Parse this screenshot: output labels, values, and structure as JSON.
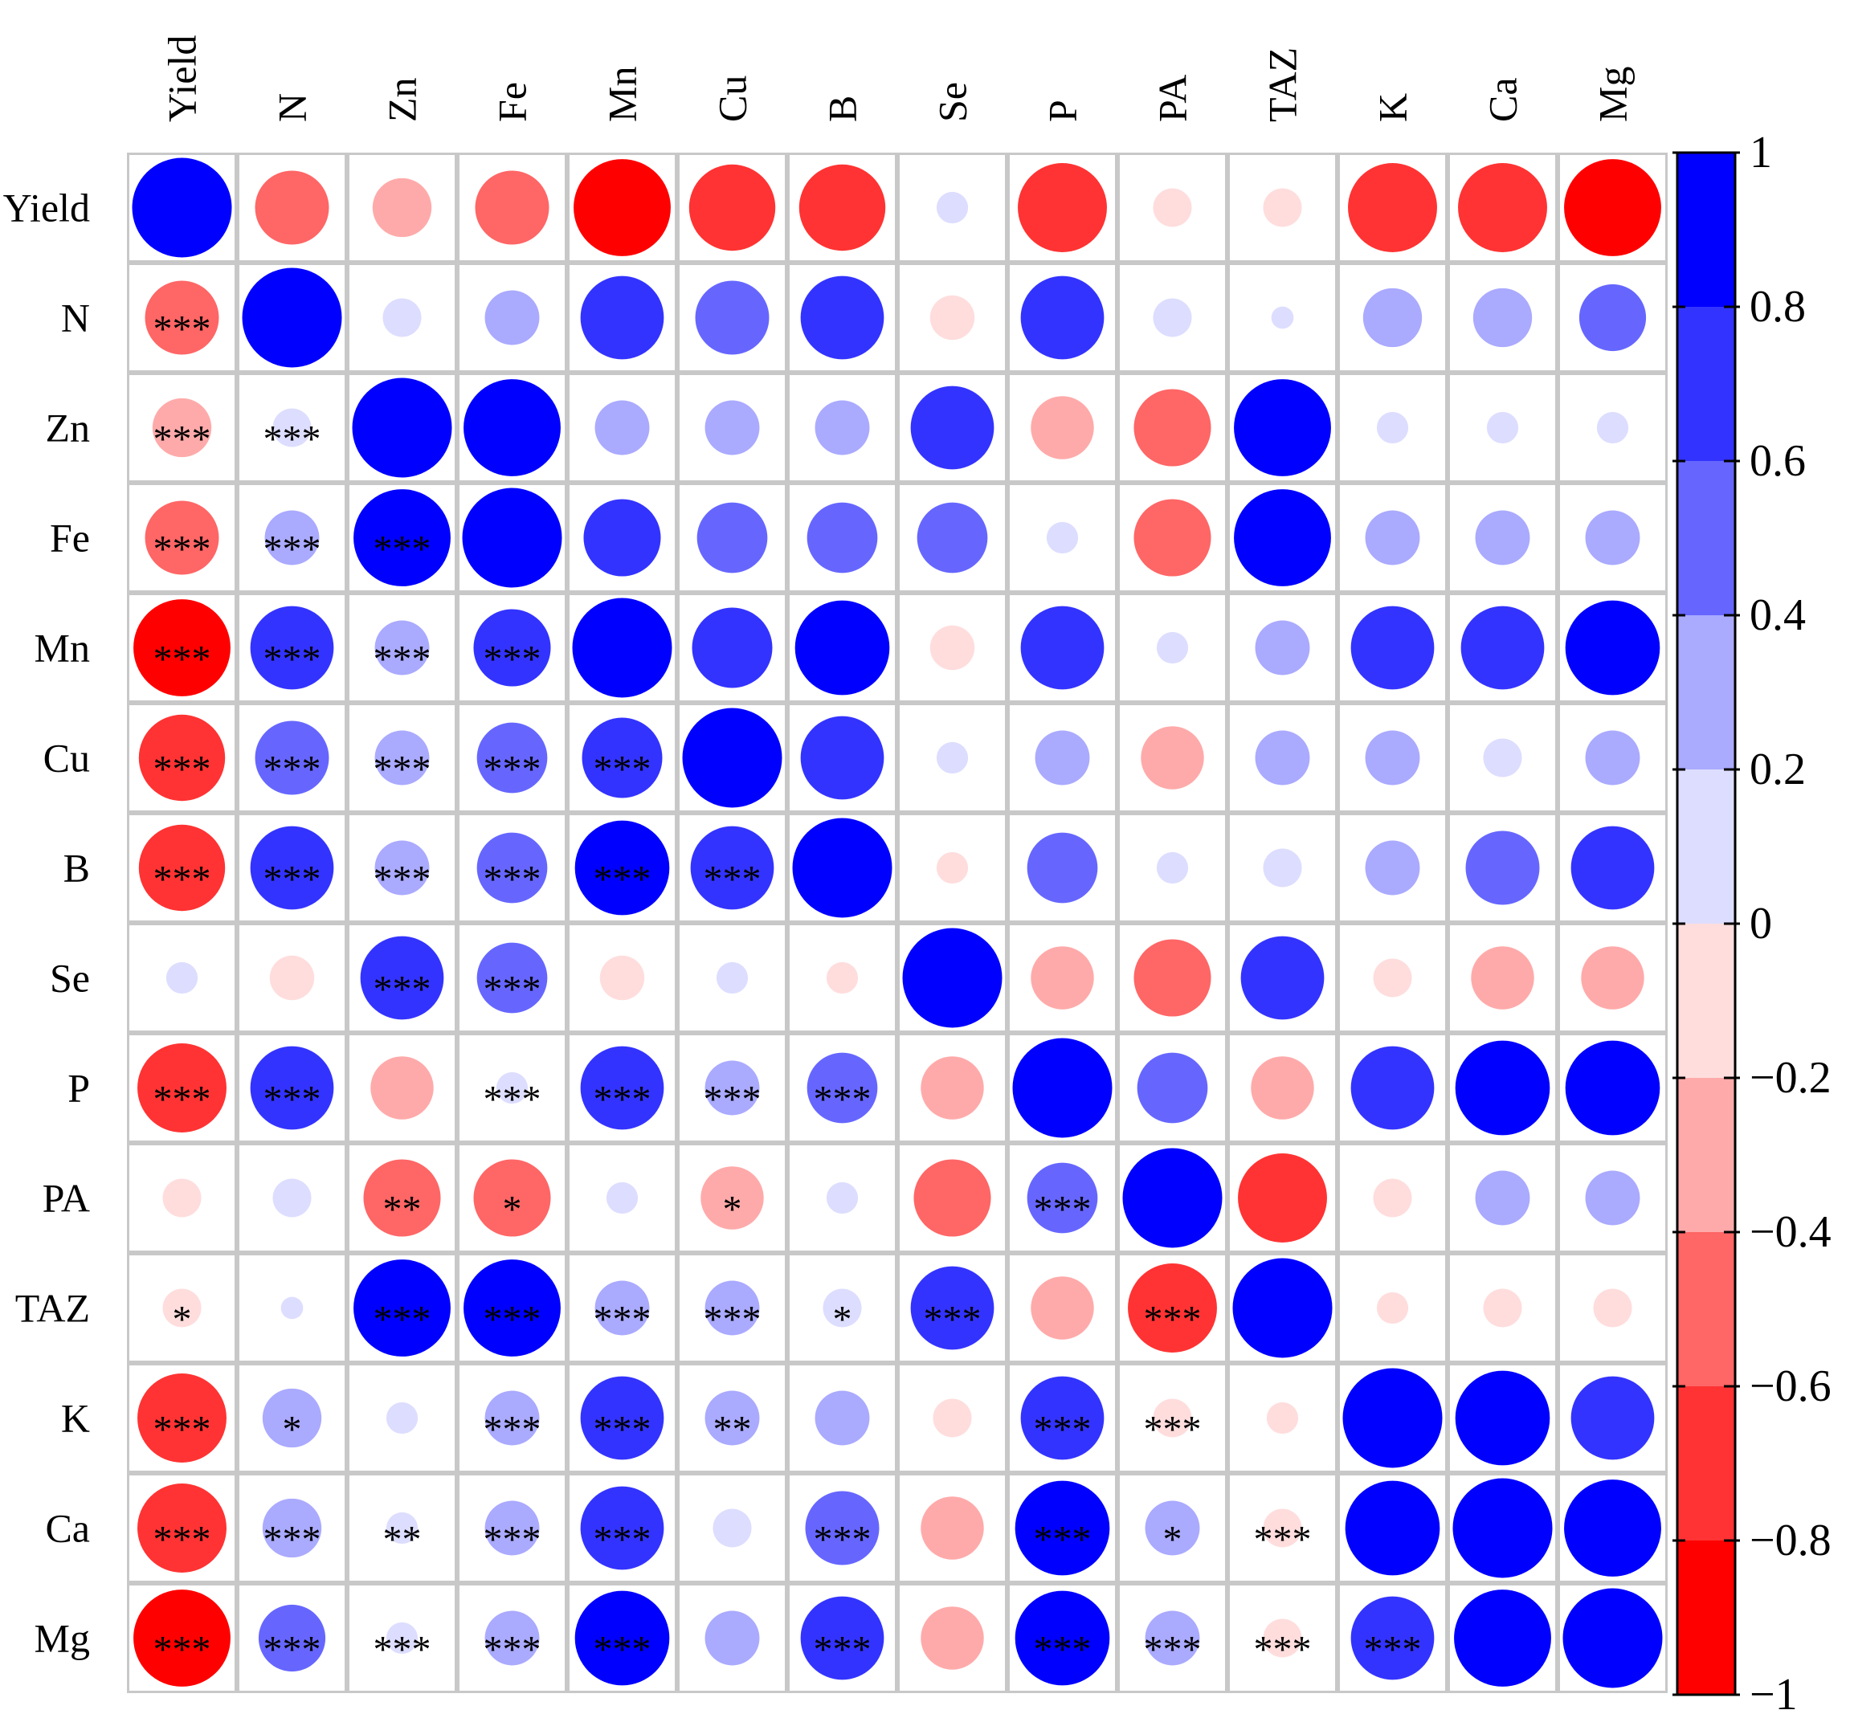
{
  "chart_data": {
    "type": "heatmap",
    "subtype": "correlation-circle-matrix",
    "variables": [
      "Yield",
      "N",
      "Zn",
      "Fe",
      "Mn",
      "Cu",
      "B",
      "Se",
      "P",
      "PA",
      "TAZ",
      "K",
      "Ca",
      "Mg"
    ],
    "upper_triangle": "circles sized and colored by correlation",
    "lower_triangle": "circles with significance stars",
    "correlation": [
      [
        1.0,
        -0.55,
        -0.35,
        -0.55,
        -0.95,
        -0.75,
        -0.75,
        0.1,
        -0.8,
        -0.15,
        -0.15,
        -0.8,
        -0.8,
        -0.95
      ],
      [
        -0.55,
        1.0,
        0.15,
        0.3,
        0.7,
        0.55,
        0.7,
        -0.2,
        0.7,
        0.15,
        0.05,
        0.35,
        0.35,
        0.45
      ],
      [
        -0.35,
        0.15,
        1.0,
        0.95,
        0.3,
        0.3,
        0.3,
        0.7,
        -0.4,
        -0.6,
        0.95,
        0.1,
        0.1,
        0.1
      ],
      [
        -0.55,
        0.3,
        0.95,
        1.0,
        0.6,
        0.5,
        0.5,
        0.5,
        0.1,
        -0.6,
        0.95,
        0.3,
        0.3,
        0.3
      ],
      [
        -0.95,
        0.7,
        0.3,
        0.6,
        1.0,
        0.65,
        0.9,
        -0.2,
        0.7,
        0.1,
        0.3,
        0.7,
        0.7,
        0.9
      ],
      [
        -0.75,
        0.55,
        0.3,
        0.5,
        0.65,
        1.0,
        0.7,
        0.1,
        0.3,
        -0.4,
        0.3,
        0.3,
        0.15,
        0.3
      ],
      [
        -0.75,
        0.7,
        0.3,
        0.5,
        0.9,
        0.7,
        1.0,
        -0.1,
        0.5,
        0.1,
        0.15,
        0.3,
        0.55,
        0.7
      ],
      [
        0.1,
        -0.2,
        0.7,
        0.5,
        -0.2,
        0.1,
        -0.1,
        1.0,
        -0.4,
        -0.6,
        0.7,
        -0.15,
        -0.4,
        -0.4
      ],
      [
        -0.8,
        0.7,
        -0.4,
        0.1,
        0.7,
        0.3,
        0.5,
        -0.4,
        1.0,
        0.5,
        -0.4,
        0.7,
        0.9,
        0.9
      ],
      [
        -0.15,
        0.15,
        -0.6,
        -0.6,
        0.1,
        -0.4,
        0.1,
        -0.6,
        0.5,
        1.0,
        -0.8,
        -0.15,
        0.3,
        0.3
      ],
      [
        -0.15,
        0.05,
        0.95,
        0.95,
        0.3,
        0.3,
        0.15,
        0.7,
        -0.4,
        -0.8,
        1.0,
        -0.1,
        -0.15,
        -0.15
      ],
      [
        -0.8,
        0.35,
        0.1,
        0.3,
        0.7,
        0.3,
        0.3,
        -0.15,
        0.7,
        -0.15,
        -0.1,
        1.0,
        0.9,
        0.7
      ],
      [
        -0.8,
        0.35,
        0.1,
        0.3,
        0.7,
        0.15,
        0.55,
        -0.4,
        0.9,
        0.3,
        -0.15,
        0.9,
        1.0,
        0.95
      ],
      [
        -0.95,
        0.45,
        0.1,
        0.3,
        0.9,
        0.3,
        0.7,
        -0.4,
        0.9,
        0.3,
        -0.15,
        0.7,
        0.95,
        1.0
      ]
    ],
    "significance": [
      [
        "",
        "",
        "",
        "",
        "",
        "",
        "",
        "",
        "",
        "",
        "",
        "",
        "",
        ""
      ],
      [
        "***",
        "",
        "",
        "",
        "",
        "",
        "",
        "",
        "",
        "",
        "",
        "",
        "",
        ""
      ],
      [
        "***",
        "***",
        "",
        "",
        "",
        "",
        "",
        "",
        "",
        "",
        "",
        "",
        "",
        ""
      ],
      [
        "***",
        "***",
        "***",
        "",
        "",
        "",
        "",
        "",
        "",
        "",
        "",
        "",
        "",
        ""
      ],
      [
        "***",
        "***",
        "***",
        "***",
        "",
        "",
        "",
        "",
        "",
        "",
        "",
        "",
        "",
        ""
      ],
      [
        "***",
        "***",
        "***",
        "***",
        "***",
        "",
        "",
        "",
        "",
        "",
        "",
        "",
        "",
        ""
      ],
      [
        "***",
        "***",
        "***",
        "***",
        "***",
        "***",
        "",
        "",
        "",
        "",
        "",
        "",
        "",
        ""
      ],
      [
        "",
        "",
        "***",
        "***",
        "",
        "",
        "",
        "",
        "",
        "",
        "",
        "",
        "",
        ""
      ],
      [
        "***",
        "***",
        "",
        "***",
        "***",
        "***",
        "***",
        "",
        "",
        "",
        "",
        "",
        "",
        ""
      ],
      [
        "",
        "",
        "**",
        "*",
        "",
        "*",
        "",
        "",
        "***",
        "",
        "",
        "",
        "",
        ""
      ],
      [
        "*",
        "",
        "***",
        "***",
        "***",
        "***",
        "*",
        "***",
        "",
        "***",
        "",
        "",
        "",
        ""
      ],
      [
        "***",
        "*",
        "",
        "***",
        "***",
        "**",
        "",
        "",
        "***",
        "***",
        "",
        "",
        "",
        ""
      ],
      [
        "***",
        "***",
        "**",
        "***",
        "***",
        "",
        "***",
        "",
        "***",
        "*",
        "***",
        "",
        "",
        ""
      ],
      [
        "***",
        "***",
        "***",
        "***",
        "***",
        "",
        "***",
        "",
        "***",
        "***",
        "***",
        "***",
        "",
        ""
      ]
    ],
    "colorbar": {
      "range": [
        -1,
        1
      ],
      "tick_labels": [
        "1",
        "0.8",
        "0.6",
        "0.4",
        "0.2",
        "0",
        "−0.2",
        "−0.4",
        "−0.6",
        "−0.8",
        "−1"
      ],
      "tick_values": [
        1,
        0.8,
        0.6,
        0.4,
        0.2,
        0,
        -0.2,
        -0.4,
        -0.6,
        -0.8,
        -1
      ],
      "bins": [
        {
          "from": 0.8,
          "to": 1.0,
          "color": "#0000ff"
        },
        {
          "from": 0.6,
          "to": 0.8,
          "color": "#3333ff"
        },
        {
          "from": 0.4,
          "to": 0.6,
          "color": "#6666ff"
        },
        {
          "from": 0.2,
          "to": 0.4,
          "color": "#aaaaff"
        },
        {
          "from": 0.0,
          "to": 0.2,
          "color": "#ddddff"
        },
        {
          "from": -0.2,
          "to": 0.0,
          "color": "#ffdddd"
        },
        {
          "from": -0.4,
          "to": -0.2,
          "color": "#ffaaaa"
        },
        {
          "from": -0.6,
          "to": -0.4,
          "color": "#ff6666"
        },
        {
          "from": -0.8,
          "to": -0.6,
          "color": "#ff3333"
        },
        {
          "from": -1.0,
          "to": -0.8,
          "color": "#ff0000"
        }
      ],
      "position": "right"
    },
    "grid": true
  }
}
